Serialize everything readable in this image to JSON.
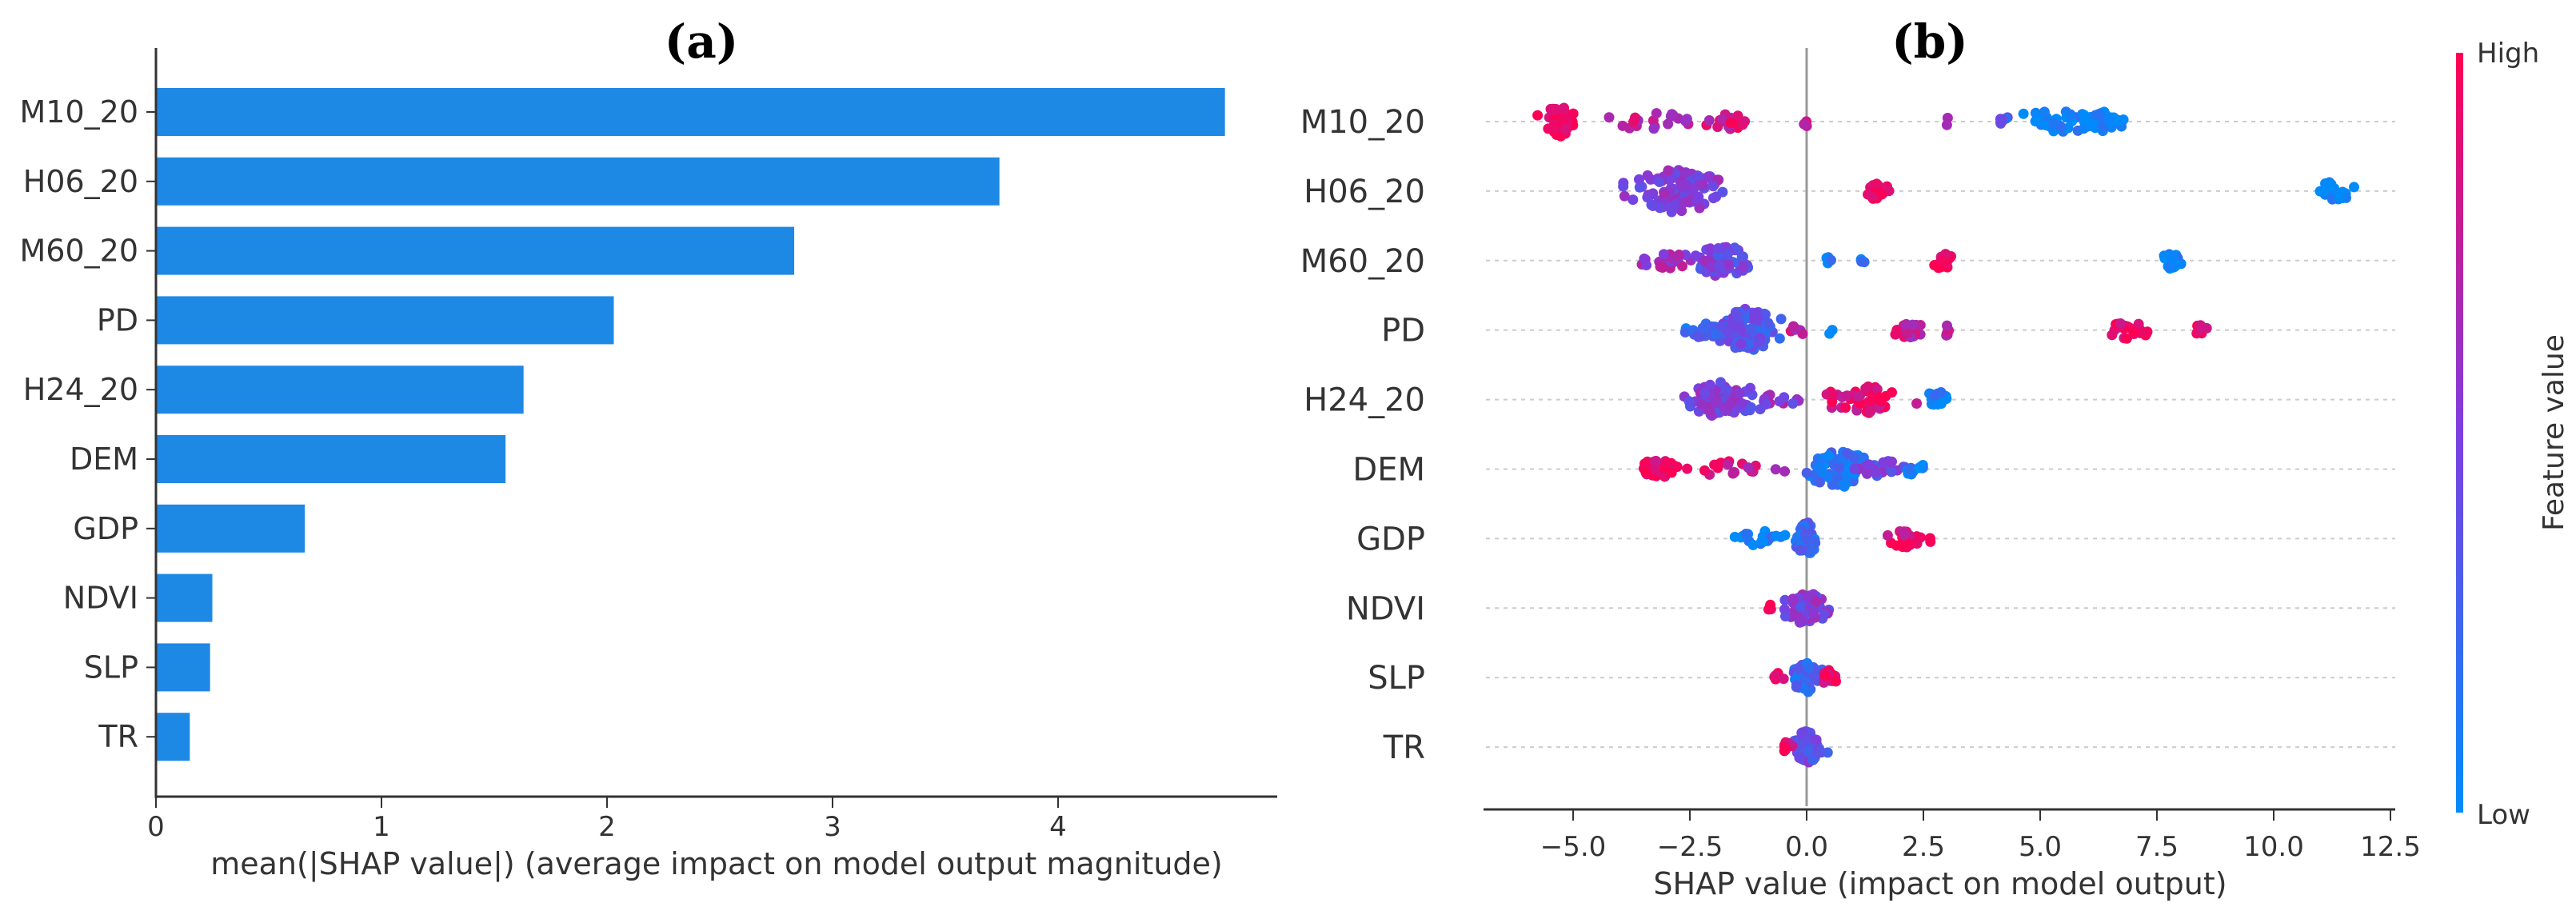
{
  "chart_data": [
    {
      "panel_label": "(a)",
      "type": "bar",
      "orientation": "horizontal",
      "categories": [
        "M10_20",
        "H06_20",
        "M60_20",
        "PD",
        "H24_20",
        "DEM",
        "GDP",
        "NDVI",
        "SLP",
        "TR"
      ],
      "values": [
        4.74,
        3.74,
        2.83,
        2.03,
        1.63,
        1.55,
        0.66,
        0.25,
        0.24,
        0.15
      ],
      "xlabel": "mean(|SHAP value|) (average impact on model output magnitude)",
      "xticks": [
        "0",
        "1",
        "2",
        "3",
        "4"
      ],
      "xlim": [
        0,
        5.0
      ],
      "bar_color": "#1e88e5"
    },
    {
      "panel_label": "(b)",
      "type": "scatter",
      "subtype": "beeswarm",
      "categories": [
        "M10_20",
        "H06_20",
        "M60_20",
        "PD",
        "H24_20",
        "DEM",
        "GDP",
        "NDVI",
        "SLP",
        "TR"
      ],
      "xlabel": "SHAP value (impact on model output)",
      "xticks": [
        "−5.0",
        "−2.5",
        "0.0",
        "2.5",
        "5.0",
        "7.5",
        "10.0",
        "12.5"
      ],
      "xlim": [
        -6.8,
        12.6
      ],
      "colorbar": {
        "label": "Feature value",
        "high": "High",
        "low": "Low",
        "low_color": "#008bfb",
        "high_color": "#ff0052"
      },
      "clusters": [
        [
          {
            "center": -5.3,
            "width": 0.6,
            "n": 60,
            "fv": 0.95
          },
          {
            "center": -3.2,
            "width": 1.6,
            "n": 22,
            "fv": 0.75
          },
          {
            "center": -1.6,
            "width": 0.6,
            "n": 20,
            "fv": 0.85
          },
          {
            "center": 0.0,
            "width": 0.1,
            "n": 4,
            "fv": 0.8
          },
          {
            "center": 3.0,
            "width": 0.1,
            "n": 2,
            "fv": 0.6
          },
          {
            "center": 4.2,
            "width": 0.2,
            "n": 8,
            "fv": 0.3
          },
          {
            "center": 5.4,
            "width": 1.4,
            "n": 40,
            "fv": 0.05
          },
          {
            "center": 6.4,
            "width": 0.5,
            "n": 30,
            "fv": 0.0
          }
        ],
        [
          {
            "center": -2.8,
            "width": 1.3,
            "n": 120,
            "fv": 0.5
          },
          {
            "center": 1.5,
            "width": 0.4,
            "n": 25,
            "fv": 1.0
          },
          {
            "center": 11.3,
            "width": 0.5,
            "n": 30,
            "fv": 0.0
          }
        ],
        [
          {
            "center": -3.0,
            "width": 1.0,
            "n": 20,
            "fv": 0.65
          },
          {
            "center": -1.8,
            "width": 0.8,
            "n": 70,
            "fv": 0.45
          },
          {
            "center": 0.5,
            "width": 0.15,
            "n": 4,
            "fv": 0.1
          },
          {
            "center": 1.2,
            "width": 0.1,
            "n": 3,
            "fv": 0.15
          },
          {
            "center": 2.9,
            "width": 0.3,
            "n": 25,
            "fv": 0.95
          },
          {
            "center": 7.8,
            "width": 0.3,
            "n": 20,
            "fv": 0.0
          }
        ],
        [
          {
            "center": -2.2,
            "width": 0.8,
            "n": 20,
            "fv": 0.2
          },
          {
            "center": -1.3,
            "width": 0.9,
            "n": 130,
            "fv": 0.35
          },
          {
            "center": -0.2,
            "width": 0.2,
            "n": 6,
            "fv": 0.7
          },
          {
            "center": 0.5,
            "width": 0.1,
            "n": 2,
            "fv": 0.1
          },
          {
            "center": 2.2,
            "width": 0.5,
            "n": 20,
            "fv": 0.75
          },
          {
            "center": 3.0,
            "width": 0.1,
            "n": 6,
            "fv": 0.8
          },
          {
            "center": 6.9,
            "width": 0.6,
            "n": 24,
            "fv": 0.95
          },
          {
            "center": 8.4,
            "width": 0.2,
            "n": 8,
            "fv": 0.9
          }
        ],
        [
          {
            "center": -1.8,
            "width": 1.0,
            "n": 80,
            "fv": 0.5
          },
          {
            "center": -0.6,
            "width": 0.6,
            "n": 12,
            "fv": 0.55
          },
          {
            "center": 1.3,
            "width": 1.2,
            "n": 50,
            "fv": 0.9
          },
          {
            "center": 2.8,
            "width": 0.3,
            "n": 25,
            "fv": 0.05
          }
        ],
        [
          {
            "center": -3.2,
            "width": 0.6,
            "n": 30,
            "fv": 0.95
          },
          {
            "center": -1.5,
            "width": 1.5,
            "n": 20,
            "fv": 0.8
          },
          {
            "center": 0.7,
            "width": 0.9,
            "n": 80,
            "fv": 0.15
          },
          {
            "center": 1.6,
            "width": 0.8,
            "n": 25,
            "fv": 0.45
          },
          {
            "center": 2.3,
            "width": 0.3,
            "n": 12,
            "fv": 0.05
          }
        ],
        [
          {
            "center": -1.0,
            "width": 0.9,
            "n": 18,
            "fv": 0.05
          },
          {
            "center": 0.0,
            "width": 0.3,
            "n": 70,
            "fv": 0.25
          },
          {
            "center": 2.1,
            "width": 0.5,
            "n": 25,
            "fv": 0.9
          },
          {
            "center": 2.6,
            "width": 0.1,
            "n": 3,
            "fv": 0.85
          }
        ],
        [
          {
            "center": 0.0,
            "width": 0.6,
            "n": 70,
            "fv": 0.5
          },
          {
            "center": -0.8,
            "width": 0.1,
            "n": 3,
            "fv": 1.0
          }
        ],
        [
          {
            "center": 0.0,
            "width": 0.45,
            "n": 60,
            "fv": 0.25
          },
          {
            "center": 0.5,
            "width": 0.2,
            "n": 20,
            "fv": 0.95
          },
          {
            "center": -0.6,
            "width": 0.2,
            "n": 5,
            "fv": 1.0
          }
        ],
        [
          {
            "center": 0.0,
            "width": 0.5,
            "n": 70,
            "fv": 0.4
          },
          {
            "center": -0.4,
            "width": 0.2,
            "n": 8,
            "fv": 0.95
          }
        ]
      ]
    }
  ]
}
